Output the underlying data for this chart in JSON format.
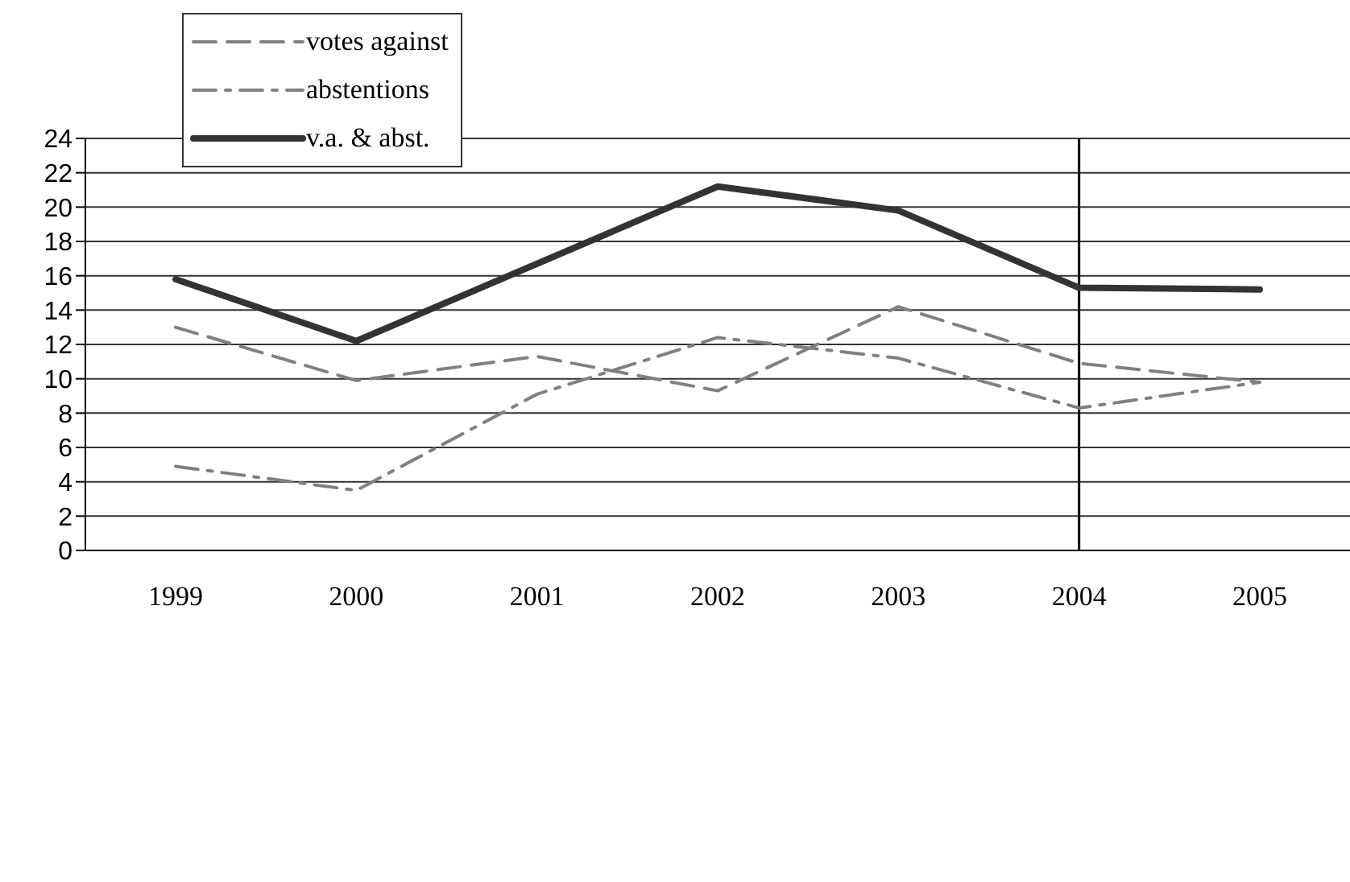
{
  "chart_data": {
    "type": "line",
    "categories": [
      "1999",
      "2000",
      "2001",
      "2002",
      "2003",
      "2004",
      "2005"
    ],
    "series": [
      {
        "name": "votes against",
        "color": "#808080",
        "line_style": "dashed",
        "values": [
          13.0,
          9.9,
          11.3,
          9.3,
          14.2,
          10.9,
          9.8
        ]
      },
      {
        "name": "abstentions",
        "color": "#808080",
        "line_style": "dashdot",
        "values": [
          4.9,
          3.5,
          9.1,
          12.4,
          11.2,
          8.3,
          9.8
        ]
      },
      {
        "name": "v.a. & abst.",
        "color": "#333333",
        "line_style": "solid",
        "values": [
          15.8,
          12.2,
          16.7,
          21.2,
          19.8,
          15.3,
          15.2
        ]
      }
    ],
    "ylim": [
      0,
      24
    ],
    "yticks": [
      0,
      2,
      4,
      6,
      8,
      10,
      12,
      14,
      16,
      18,
      20,
      22,
      24
    ],
    "grid": "y",
    "legend": "top left",
    "marker": "none",
    "ref_lines": [
      {
        "axis": "x",
        "value": "2004",
        "color": "#000000"
      }
    ]
  }
}
